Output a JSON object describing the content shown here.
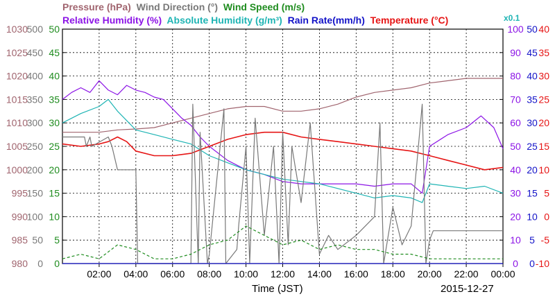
{
  "chart_data": {
    "type": "line",
    "date": "2015-12-27",
    "xlabel": "Time (JST)",
    "x_ticks": [
      "02:00",
      "04:00",
      "06:00",
      "08:00",
      "10:00",
      "12:00",
      "14:00",
      "16:00",
      "18:00",
      "20:00",
      "22:00",
      "00:00"
    ],
    "x_range_hours": [
      0,
      24
    ],
    "grid": true,
    "legend": {
      "row1": [
        {
          "text": "Pressure (hPa)",
          "color": "#a0646e"
        },
        {
          "text": "Wind Direction (°)",
          "color": "#787878"
        },
        {
          "text": "Wind Speed (m/s)",
          "color": "#1e8c1e"
        }
      ],
      "row2": [
        {
          "text": "Relative Humidity (%)",
          "color": "#8c14e6"
        },
        {
          "text": "Absolute Humidity (g/m³)",
          "color": "#1eb4b4"
        },
        {
          "text": "Rain Rate(mm/h)",
          "color": "#1414c8"
        },
        {
          "text": "Temperature (°C)",
          "color": "#e61414"
        },
        {
          "text": "x0.1",
          "color": "#1eb4b4"
        }
      ]
    },
    "axes": {
      "pressure": {
        "label": "hPa",
        "color": "#a0646e",
        "range": [
          980,
          1030
        ],
        "ticks": [
          "1030",
          "1025",
          "1020",
          "1015",
          "1010",
          "1005",
          "1000",
          "995",
          "990",
          "985",
          "980"
        ]
      },
      "wind_direction": {
        "label": "°",
        "color": "#787878",
        "range": [
          0,
          500
        ],
        "ticks": [
          "500",
          "450",
          "400",
          "350",
          "300",
          "250",
          "200",
          "150",
          "100",
          "50",
          "0"
        ]
      },
      "wind_speed": {
        "label": "m/s",
        "color": "#1e8c1e",
        "range": [
          0,
          50
        ],
        "ticks": [
          "50",
          "45",
          "40",
          "35",
          "30",
          "25",
          "20",
          "15",
          "10",
          "5",
          "0"
        ]
      },
      "relative_humidity": {
        "label": "%",
        "color": "#8c14e6",
        "range": [
          0,
          100
        ],
        "ticks": [
          "100",
          "90",
          "80",
          "70",
          "60",
          "50",
          "40",
          "30",
          "20",
          "10",
          "0"
        ]
      },
      "rain_rate": {
        "label": "mm/h",
        "color": "#1414c8",
        "range": [
          0,
          50
        ],
        "ticks": [
          "50",
          "45",
          "40",
          "35",
          "30",
          "25",
          "20",
          "15",
          "10",
          "5",
          "0"
        ]
      },
      "temperature": {
        "label": "°C",
        "color": "#e61414",
        "range": [
          -10,
          40
        ],
        "ticks": [
          "40",
          "35",
          "30",
          "25",
          "20",
          "15",
          "10",
          "5",
          "0",
          "-5",
          "-10"
        ]
      }
    },
    "series": [
      {
        "name": "Pressure (hPa)",
        "axis": "pressure",
        "color": "#a0646e",
        "x": [
          0,
          1,
          2,
          3,
          4,
          5,
          6,
          7,
          8,
          9,
          10,
          11,
          12,
          13,
          14,
          15,
          16,
          17,
          18,
          19,
          20,
          21,
          22,
          23,
          24
        ],
        "values": [
          1008,
          1008,
          1008,
          1008.5,
          1008.7,
          1009,
          1010,
          1011,
          1012,
          1013,
          1013.5,
          1013.5,
          1012.5,
          1012.5,
          1013,
          1014,
          1015.5,
          1016.5,
          1017,
          1017.5,
          1018.5,
          1019,
          1019.5,
          1019.5,
          1019.5
        ]
      },
      {
        "name": "Relative Humidity (%)",
        "axis": "relative_humidity",
        "color": "#8c14e6",
        "x": [
          0,
          0.5,
          1,
          1.5,
          2,
          2.5,
          3,
          3.5,
          4,
          4.5,
          5,
          5.5,
          6,
          6.5,
          7,
          7.5,
          8,
          9,
          10,
          11,
          12,
          13,
          14,
          15,
          16,
          17,
          18,
          19,
          19.6,
          20,
          21,
          22,
          22.8,
          23.5,
          24
        ],
        "values": [
          70,
          73,
          75,
          73,
          78,
          74,
          72,
          76,
          74,
          73,
          71,
          70,
          66,
          62,
          59,
          54,
          50,
          44,
          40,
          38,
          35,
          34,
          34,
          34,
          34,
          33,
          34,
          34,
          30,
          50,
          55,
          58,
          63,
          58,
          49
        ]
      },
      {
        "name": "Absolute Humidity (g/m³) x0.1",
        "axis": "relative_humidity",
        "color": "#1eb4b4",
        "x": [
          0,
          1,
          2,
          2.5,
          3,
          3.5,
          4,
          5,
          6,
          7,
          8,
          9,
          10,
          11,
          12,
          13,
          14,
          15,
          16,
          17,
          18,
          19,
          19.6,
          20,
          21,
          22,
          23,
          24
        ],
        "values": [
          60,
          64,
          67,
          70,
          65,
          61,
          57,
          55,
          53,
          51,
          46,
          43,
          40,
          38,
          36,
          35,
          34,
          32,
          30,
          28,
          29,
          28,
          26,
          34,
          33,
          32,
          33,
          30
        ]
      },
      {
        "name": "Temperature (°C)",
        "axis": "temperature",
        "color": "#e61414",
        "x": [
          0,
          1,
          2,
          2.5,
          3,
          3.5,
          4,
          5,
          6,
          7,
          8,
          9,
          10,
          11,
          12,
          13,
          14,
          15,
          16,
          17,
          18,
          19,
          20,
          21,
          22,
          23,
          24
        ],
        "values": [
          15.5,
          15,
          15.5,
          16,
          17,
          16,
          14,
          13,
          13,
          13.5,
          15,
          16.5,
          17.5,
          18,
          18,
          17,
          16.5,
          16,
          15.5,
          15,
          14.5,
          14,
          13,
          12,
          11,
          10,
          10.5
        ]
      },
      {
        "name": "Wind Direction (°)",
        "axis": "wind_direction",
        "color": "#787878",
        "x": [
          0,
          1.2,
          1.3,
          1.5,
          1.6,
          2.5,
          2.7,
          3,
          3.5,
          4,
          4.1,
          5,
          7,
          7.1,
          7.4,
          7.5,
          7.9,
          8,
          8.8,
          8.9,
          9.5,
          9.6,
          10,
          10.2,
          10.5,
          11,
          11.5,
          11.8,
          12,
          12.3,
          12.5,
          13,
          13.5,
          14,
          14.5,
          15,
          16,
          17,
          17.3,
          17.5,
          18,
          18.5,
          19,
          19.6,
          19.8,
          20,
          20.2,
          24
        ],
        "values": [
          270,
          270,
          250,
          270,
          250,
          270,
          250,
          200,
          200,
          200,
          0,
          0,
          0,
          340,
          0,
          280,
          0,
          20,
          330,
          0,
          30,
          80,
          250,
          0,
          310,
          60,
          250,
          0,
          280,
          40,
          250,
          130,
          300,
          20,
          60,
          30,
          60,
          100,
          300,
          0,
          120,
          40,
          80,
          340,
          0,
          50,
          70,
          70
        ]
      },
      {
        "name": "Wind Speed (m/s)",
        "axis": "wind_speed",
        "color": "#1e8c1e",
        "x": [
          0,
          1,
          2,
          3,
          4,
          5,
          6,
          7,
          8,
          9,
          10,
          11,
          12,
          13,
          14,
          15,
          16,
          17,
          18,
          19,
          20,
          21,
          22,
          23,
          24
        ],
        "values": [
          1,
          2,
          1,
          4,
          3,
          1,
          1,
          2,
          4,
          5,
          8,
          6,
          4,
          5,
          3,
          4,
          3,
          3,
          2,
          2,
          1,
          1,
          1,
          1,
          1
        ]
      },
      {
        "name": "Rain Rate(mm/h)",
        "axis": "rain_rate",
        "color": "#1414c8",
        "x": [
          0,
          24
        ],
        "values": [
          0,
          0
        ]
      }
    ]
  }
}
